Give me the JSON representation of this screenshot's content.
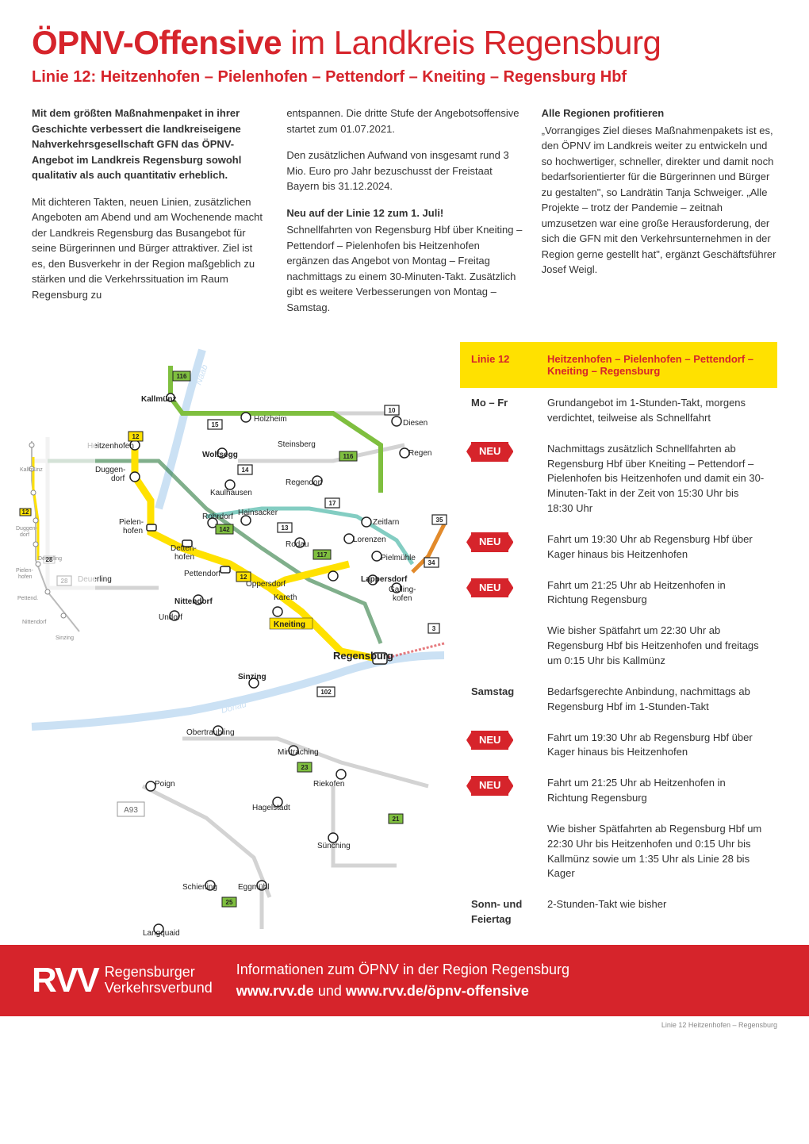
{
  "title_bold": "ÖPNV-Offensive",
  "title_rest": " im Landkreis Regensburg",
  "subtitle": "Linie 12: Heitzenhofen – Pielenhofen – Pettendorf – Kneiting – Regensburg Hbf",
  "intro": {
    "lead": "Mit dem größten Maßnahmenpaket in ihrer Geschichte verbessert die landkreiseigene Nahverkehrsgesellschaft GFN das ÖPNV-Angebot im Landkreis Regensburg sowohl qualitativ als auch quantitativ erheblich.",
    "p1": "Mit dichteren Takten, neuen Linien, zusätzlichen Angeboten am Abend und am Wochenende macht der Landkreis Regensburg das Busangebot für seine Bürgerinnen und Bürger attraktiver. Ziel ist es, den Busverkehr in der Region maßgeblich zu stärken und die Verkehrssituation im Raum Regensburg zu",
    "p2a": "entspannen. Die dritte Stufe der Angebotsoffensive startet zum 01.07.2021.",
    "p2b": "Den zusätzlichen Aufwand von insgesamt rund 3 Mio. Euro pro Jahr bezuschusst der Freistaat Bayern bis 31.12.2024.",
    "h2": "Neu auf der Linie 12 zum 1. Juli!",
    "p2c": "Schnellfahrten von Regensburg Hbf über Kneiting – Pettendorf – Pielenhofen bis Heitzenhofen ergänzen das Angebot von Montag – Freitag nachmittags zu einem 30-Minuten-Takt. Zusätzlich gibt es weitere Verbesserungen von Montag – Samstag.",
    "h3": "Alle Regionen profitieren",
    "p3": "„Vorrangiges Ziel dieses Maßnahmenpakets ist es, den ÖPNV im Landkreis weiter zu entwickeln und so hochwertiger, schneller, direkter und damit noch bedarfsorientierter für die Bürgerinnen und Bürger zu gestalten\", so Landrätin Tanja Schweiger. „Alle Projekte – trotz der Pandemie – zeitnah umzusetzen war eine große Herausforderung, der sich die GFN mit den Verkehrsunternehmen in der Region gerne gestellt hat\", ergänzt Geschäftsführer Josef Weigl."
  },
  "schedule": {
    "head_left": "Linie 12",
    "head_right": "Heitzenhofen – Pielenhofen – Pettendorf – Kneiting – Regensburg",
    "rows": [
      {
        "label": "Mo – Fr",
        "badge": "",
        "text": "Grundangebot im 1-Stunden-Takt, morgens verdichtet, teilweise als Schnellfahrt"
      },
      {
        "label": "",
        "badge": "NEU",
        "text": "Nachmittags zusätzlich Schnellfahrten ab Regensburg Hbf über Kneiting – Pettendorf – Pielenhofen bis Heitzenhofen und damit ein 30-Minuten-Takt in der Zeit von 15:30 Uhr bis 18:30 Uhr"
      },
      {
        "label": "",
        "badge": "NEU",
        "text": "Fahrt um 19:30 Uhr ab Regensburg Hbf über Kager hinaus bis Heitzenhofen"
      },
      {
        "label": "",
        "badge": "NEU",
        "text": "Fahrt um 21:25 Uhr ab Heitzenhofen in Richtung Regensburg"
      },
      {
        "label": "",
        "badge": "",
        "text": "Wie bisher Spätfahrt um 22:30 Uhr ab Regensburg Hbf bis Heitzenhofen und freitags um 0:15 Uhr bis Kallmünz"
      },
      {
        "label": "Samstag",
        "badge": "",
        "text": "Bedarfsgerechte Anbindung, nachmittags ab Regensburg Hbf im 1-Stunden-Takt"
      },
      {
        "label": "",
        "badge": "NEU",
        "text": "Fahrt um 19:30 Uhr ab Regensburg Hbf über Kager hinaus bis Heitzenhofen"
      },
      {
        "label": "",
        "badge": "NEU",
        "text": "Fahrt um 21:25 Uhr ab Heitzenhofen in Richtung Regensburg"
      },
      {
        "label": "",
        "badge": "",
        "text": "Wie bisher Spätfahrten ab Regensburg Hbf um 22:30 Uhr bis Heitzenhofen und 0:15 Uhr bis Kallmünz sowie um 1:35 Uhr als Linie 28 bis Kager"
      },
      {
        "label": "Sonn- und Feiertag",
        "badge": "",
        "text": "2-Stunden-Takt wie bisher"
      }
    ]
  },
  "map": {
    "colors": {
      "yellow": "#ffe100",
      "green": "#7fbf3f",
      "teal": "#4fb8a8",
      "darkgreen": "#2b7a3e",
      "blue": "#2b6fb5",
      "orange": "#e28a2b",
      "red": "#d6242b",
      "grey": "#c9c9c9",
      "lightgrey": "#e5e5e5",
      "river": "#6aa8e0"
    },
    "route_nums": {
      "n116a": "116",
      "n12a": "12",
      "n15": "15",
      "n14": "14",
      "n142": "142",
      "n13": "13",
      "n17": "17",
      "n117": "117",
      "n12b": "12",
      "n116b": "116",
      "n10": "10",
      "n35": "35",
      "n34": "34",
      "n23": "23",
      "n25": "25",
      "n21": "21",
      "n102": "102",
      "n28": "28",
      "n3": "3"
    },
    "labels": {
      "kallmuenz": "Kallmünz",
      "holzheim": "Holzheim",
      "heitzenhofen": "Heitzenhofen",
      "duggendorf": "Duggen-\ndorf",
      "wolfsegg": "Wolfsegg",
      "steinsberg": "Steinsberg",
      "kaulhausen": "Kaulhausen",
      "regendorf": "Regendorf",
      "diesen": "Diesen",
      "regen": "Regen",
      "pielenhofen": "Pielen-\nhofen",
      "rohrdorf": "Rohrdorf",
      "hainsacker": "Hainsacker",
      "zeitlarn": "Zeitlarn",
      "dettenhofen": "Detten-\nhofen",
      "rodau": "Rodau",
      "lorenzen": "Lorenzen",
      "pielmuehle": "Pielmühle",
      "pettendorf": "Pettendorf",
      "lappersdorf": "Lappersdorf",
      "oppersdorf": "Oppersdorf",
      "kareth": "Kareth",
      "gallingkofen": "Galling-\nkofen",
      "nittendorf": "Nittendorf",
      "undorf": "Undorf",
      "deuerling": "Deuerling",
      "kneiting": "Kneiting",
      "regensburg": "Regensburg",
      "sinzing": "Sinzing",
      "obertraubling": "Obertraubling",
      "mintraching": "Mintraching",
      "riekofen": "Riekofen",
      "hagelstadt": "Hagelstadt",
      "suenching": "Sünching",
      "schierling": "Schierling",
      "eggmuehl": "Eggmühl",
      "langquaid": "Langquaid",
      "poign": "Poign",
      "a93": "A93",
      "donau": "Donau",
      "naab": "Naab"
    },
    "mini": {
      "kallmuenz": "Kallmünz",
      "heitzenhofen": "Heitzenhofen",
      "duggendorf": "Duggen-\ndorf",
      "pielenhofen": "Pielen-\nhofen",
      "pettendorf": "Pettend.",
      "nittendorf": "Nittendorf",
      "undorf": "Undorf",
      "deuerling": "Deuerling",
      "sinzing": "Sinzing",
      "n12": "12",
      "n28": "28"
    }
  },
  "footer": {
    "logo_mark": "RVV",
    "logo_line1": "Regensburger",
    "logo_line2": "Verkehrsverbund",
    "info1": "Informationen zum ÖPNV in der Region Regensburg",
    "url1": "www.rvv.de",
    "url_and": " und ",
    "url2": "www.rvv.de/öpnv-offensive"
  },
  "caption": "Linie 12 Heitzenhofen – Regensburg"
}
